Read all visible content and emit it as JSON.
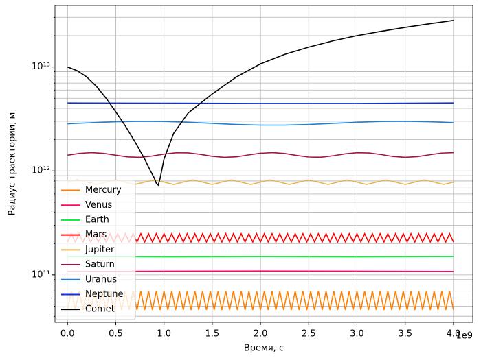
{
  "chart_data": {
    "type": "line",
    "xlabel": "Время, с",
    "ylabel": "Радиус траектории, м",
    "x_offset_label": "1e9",
    "xlim": [
      -130000000.0,
      4200000000.0
    ],
    "ylim": [
      35000000000.0,
      39000000000000.0
    ],
    "yscale": "log",
    "grid": true,
    "legend": "lower left",
    "xticks": [
      {
        "value": 0,
        "label": "0.0"
      },
      {
        "value": 500000000.0,
        "label": "0.5"
      },
      {
        "value": 1000000000.0,
        "label": "1.0"
      },
      {
        "value": 1500000000.0,
        "label": "1.5"
      },
      {
        "value": 2000000000.0,
        "label": "2.0"
      },
      {
        "value": 2500000000.0,
        "label": "2.5"
      },
      {
        "value": 3000000000.0,
        "label": "3.0"
      },
      {
        "value": 3500000000.0,
        "label": "3.5"
      },
      {
        "value": 4000000000.0,
        "label": "4.0"
      }
    ],
    "yticks": [
      {
        "value": 100000000000.0,
        "label": "10¹¹"
      },
      {
        "value": 1000000000000.0,
        "label": "10¹²"
      },
      {
        "value": 10000000000000.0,
        "label": "10¹³"
      }
    ],
    "yminor_ticks": [
      40000000000.0,
      50000000000.0,
      60000000000.0,
      70000000000.0,
      80000000000.0,
      90000000000.0,
      200000000000.0,
      300000000000.0,
      400000000000.0,
      500000000000.0,
      600000000000.0,
      700000000000.0,
      800000000000.0,
      900000000000.0,
      2000000000000.0,
      3000000000000.0,
      4000000000000.0,
      5000000000000.0,
      6000000000000.0,
      7000000000000.0,
      8000000000000.0,
      9000000000000.0,
      20000000000000.0,
      30000000000000.0
    ],
    "series": [
      {
        "name": "Mercury",
        "color": "#ff8000",
        "x": [
          0,
          40000000.0,
          80000000.0,
          120000000.0,
          160000000.0,
          200000000.0,
          240000000.0,
          280000000.0,
          320000000.0,
          360000000.0,
          400000000.0,
          440000000.0,
          480000000.0,
          520000000.0,
          560000000.0,
          600000000.0,
          640000000.0,
          680000000.0,
          720000000.0,
          760000000.0,
          800000000.0,
          840000000.0,
          880000000.0,
          920000000.0,
          960000000.0,
          1000000000.0,
          1040000000.0,
          1080000000.0,
          1120000000.0,
          1160000000.0,
          1200000000.0,
          1240000000.0,
          1280000000.0,
          1320000000.0,
          1360000000.0,
          1400000000.0,
          1440000000.0,
          1480000000.0,
          1520000000.0,
          1560000000.0,
          1600000000.0,
          1640000000.0,
          1680000000.0,
          1720000000.0,
          1760000000.0,
          1800000000.0,
          1840000000.0,
          1880000000.0,
          1920000000.0,
          1960000000.0,
          2000000000.0,
          2040000000.0,
          2080000000.0,
          2120000000.0,
          2160000000.0,
          2200000000.0,
          2240000000.0,
          2280000000.0,
          2320000000.0,
          2360000000.0,
          2400000000.0,
          2440000000.0,
          2480000000.0,
          2520000000.0,
          2560000000.0,
          2600000000.0,
          2640000000.0,
          2680000000.0,
          2720000000.0,
          2760000000.0,
          2800000000.0,
          2840000000.0,
          2880000000.0,
          2920000000.0,
          2960000000.0,
          3000000000.0,
          3040000000.0,
          3080000000.0,
          3120000000.0,
          3160000000.0,
          3200000000.0,
          3240000000.0,
          3280000000.0,
          3320000000.0,
          3360000000.0,
          3400000000.0,
          3440000000.0,
          3480000000.0,
          3520000000.0,
          3560000000.0,
          3600000000.0,
          3640000000.0,
          3680000000.0,
          3720000000.0,
          3760000000.0,
          3800000000.0,
          3840000000.0,
          3880000000.0,
          3920000000.0,
          3960000000.0,
          4000000000.0
        ],
        "values": [
          46000000000.0,
          69800000000.0,
          46000000000.0,
          69800000000.0,
          46000000000.0,
          69800000000.0,
          46000000000.0,
          69800000000.0,
          46000000000.0,
          69800000000.0,
          46000000000.0,
          69800000000.0,
          46000000000.0,
          69800000000.0,
          46000000000.0,
          69800000000.0,
          46000000000.0,
          69800000000.0,
          46000000000.0,
          69800000000.0,
          46000000000.0,
          69800000000.0,
          46000000000.0,
          69800000000.0,
          46000000000.0,
          69800000000.0,
          46000000000.0,
          69800000000.0,
          46000000000.0,
          69800000000.0,
          46000000000.0,
          69800000000.0,
          46000000000.0,
          69800000000.0,
          46000000000.0,
          69800000000.0,
          46000000000.0,
          69800000000.0,
          46000000000.0,
          69800000000.0,
          46000000000.0,
          69800000000.0,
          46000000000.0,
          69800000000.0,
          46000000000.0,
          69800000000.0,
          46000000000.0,
          69800000000.0,
          46000000000.0,
          69800000000.0,
          46000000000.0,
          69800000000.0,
          46000000000.0,
          69800000000.0,
          46000000000.0,
          69800000000.0,
          46000000000.0,
          69800000000.0,
          46000000000.0,
          69800000000.0,
          46000000000.0,
          69800000000.0,
          46000000000.0,
          69800000000.0,
          46000000000.0,
          69800000000.0,
          46000000000.0,
          69800000000.0,
          46000000000.0,
          69800000000.0,
          46000000000.0,
          69800000000.0,
          46000000000.0,
          69800000000.0,
          46000000000.0,
          69800000000.0,
          46000000000.0,
          69800000000.0,
          46000000000.0,
          69800000000.0,
          46000000000.0,
          69800000000.0,
          46000000000.0,
          69800000000.0,
          46000000000.0,
          69800000000.0,
          46000000000.0,
          69800000000.0,
          46000000000.0,
          69800000000.0,
          46000000000.0,
          69800000000.0,
          46000000000.0,
          69800000000.0,
          46000000000.0,
          69800000000.0,
          46000000000.0,
          69800000000.0,
          46000000000.0,
          69800000000.0,
          46000000000.0
        ]
      },
      {
        "name": "Venus",
        "color": "#ff0a6c",
        "x": [
          0,
          2000000000.0,
          4000000000.0
        ],
        "values": [
          108000000000.0,
          109000000000.0,
          108000000000.0
        ]
      },
      {
        "name": "Earth",
        "color": "#10f040",
        "x": [
          0,
          1000000000.0,
          2000000000.0,
          3000000000.0,
          4000000000.0
        ],
        "values": [
          150000000000.0,
          149000000000.0,
          150000000000.0,
          149000000000.0,
          150000000000.0
        ]
      },
      {
        "name": "Mars",
        "color": "#ff0000",
        "x": [
          0,
          40000000.0,
          80000000.0,
          120000000.0,
          160000000.0,
          200000000.0,
          240000000.0,
          280000000.0,
          320000000.0,
          360000000.0,
          400000000.0,
          440000000.0,
          480000000.0,
          520000000.0,
          560000000.0,
          600000000.0,
          640000000.0,
          680000000.0,
          720000000.0,
          760000000.0,
          800000000.0,
          840000000.0,
          880000000.0,
          920000000.0,
          960000000.0,
          1000000000.0,
          1040000000.0,
          1080000000.0,
          1120000000.0,
          1160000000.0,
          1200000000.0,
          1240000000.0,
          1280000000.0,
          1320000000.0,
          1360000000.0,
          1400000000.0,
          1440000000.0,
          1480000000.0,
          1520000000.0,
          1560000000.0,
          1600000000.0,
          1640000000.0,
          1680000000.0,
          1720000000.0,
          1760000000.0,
          1800000000.0,
          1840000000.0,
          1880000000.0,
          1920000000.0,
          1960000000.0,
          2000000000.0,
          2040000000.0,
          2080000000.0,
          2120000000.0,
          2160000000.0,
          2200000000.0,
          2240000000.0,
          2280000000.0,
          2320000000.0,
          2360000000.0,
          2400000000.0,
          2440000000.0,
          2480000000.0,
          2520000000.0,
          2560000000.0,
          2600000000.0,
          2640000000.0,
          2680000000.0,
          2720000000.0,
          2760000000.0,
          2800000000.0,
          2840000000.0,
          2880000000.0,
          2920000000.0,
          2960000000.0,
          3000000000.0,
          3040000000.0,
          3080000000.0,
          3120000000.0,
          3160000000.0,
          3200000000.0,
          3240000000.0,
          3280000000.0,
          3320000000.0,
          3360000000.0,
          3400000000.0,
          3440000000.0,
          3480000000.0,
          3520000000.0,
          3560000000.0,
          3600000000.0,
          3640000000.0,
          3680000000.0,
          3720000000.0,
          3760000000.0,
          3800000000.0,
          3840000000.0,
          3880000000.0,
          3920000000.0,
          3960000000.0,
          4000000000.0
        ],
        "values": [
          207000000000.0,
          249000000000.0,
          207000000000.0,
          249000000000.0,
          207000000000.0,
          249000000000.0,
          207000000000.0,
          249000000000.0,
          207000000000.0,
          249000000000.0,
          207000000000.0,
          249000000000.0,
          207000000000.0,
          249000000000.0,
          207000000000.0,
          249000000000.0,
          207000000000.0,
          249000000000.0,
          207000000000.0,
          249000000000.0,
          207000000000.0,
          249000000000.0,
          207000000000.0,
          249000000000.0,
          207000000000.0,
          249000000000.0,
          207000000000.0,
          249000000000.0,
          207000000000.0,
          249000000000.0,
          207000000000.0,
          249000000000.0,
          207000000000.0,
          249000000000.0,
          207000000000.0,
          249000000000.0,
          207000000000.0,
          249000000000.0,
          207000000000.0,
          249000000000.0,
          207000000000.0,
          249000000000.0,
          207000000000.0,
          249000000000.0,
          207000000000.0,
          249000000000.0,
          207000000000.0,
          249000000000.0,
          207000000000.0,
          249000000000.0,
          207000000000.0,
          249000000000.0,
          207000000000.0,
          249000000000.0,
          207000000000.0,
          249000000000.0,
          207000000000.0,
          249000000000.0,
          207000000000.0,
          249000000000.0,
          207000000000.0,
          249000000000.0,
          207000000000.0,
          249000000000.0,
          207000000000.0,
          249000000000.0,
          207000000000.0,
          249000000000.0,
          207000000000.0,
          249000000000.0,
          207000000000.0,
          249000000000.0,
          207000000000.0,
          249000000000.0,
          207000000000.0,
          249000000000.0,
          207000000000.0,
          249000000000.0,
          207000000000.0,
          249000000000.0,
          207000000000.0,
          249000000000.0,
          207000000000.0,
          249000000000.0,
          207000000000.0,
          249000000000.0,
          207000000000.0,
          249000000000.0,
          207000000000.0,
          249000000000.0,
          207000000000.0,
          249000000000.0,
          207000000000.0,
          249000000000.0,
          207000000000.0,
          249000000000.0,
          207000000000.0,
          249000000000.0,
          207000000000.0,
          249000000000.0,
          207000000000.0
        ]
      },
      {
        "name": "Jupiter",
        "color": "#e6b450",
        "x": [
          0,
          100000000.0,
          200000000.0,
          300000000.0,
          400000000.0,
          500000000.0,
          600000000.0,
          700000000.0,
          800000000.0,
          900000000.0,
          1000000000.0,
          1100000000.0,
          1200000000.0,
          1300000000.0,
          1400000000.0,
          1500000000.0,
          1600000000.0,
          1700000000.0,
          1800000000.0,
          1900000000.0,
          2000000000.0,
          2100000000.0,
          2200000000.0,
          2300000000.0,
          2400000000.0,
          2500000000.0,
          2600000000.0,
          2700000000.0,
          2800000000.0,
          2900000000.0,
          3000000000.0,
          3100000000.0,
          3200000000.0,
          3300000000.0,
          3400000000.0,
          3500000000.0,
          3600000000.0,
          3700000000.0,
          3800000000.0,
          3900000000.0,
          4000000000.0
        ],
        "values": [
          780000000000.0,
          820000000000.0,
          780000000000.0,
          740000000000.0,
          780000000000.0,
          820000000000.0,
          780000000000.0,
          740000000000.0,
          780000000000.0,
          820000000000.0,
          780000000000.0,
          740000000000.0,
          780000000000.0,
          820000000000.0,
          780000000000.0,
          740000000000.0,
          780000000000.0,
          820000000000.0,
          780000000000.0,
          740000000000.0,
          780000000000.0,
          820000000000.0,
          780000000000.0,
          740000000000.0,
          780000000000.0,
          820000000000.0,
          780000000000.0,
          740000000000.0,
          780000000000.0,
          820000000000.0,
          780000000000.0,
          740000000000.0,
          780000000000.0,
          820000000000.0,
          780000000000.0,
          740000000000.0,
          780000000000.0,
          820000000000.0,
          780000000000.0,
          740000000000.0,
          780000000000.0
        ]
      },
      {
        "name": "Saturn",
        "color": "#a0144a",
        "x": [
          0,
          125000000.0,
          250000000.0,
          375000000.0,
          500000000.0,
          625000000.0,
          750000000.0,
          875000000.0,
          1000000000.0,
          1125000000.0,
          1250000000.0,
          1375000000.0,
          1500000000.0,
          1625000000.0,
          1750000000.0,
          1875000000.0,
          2000000000.0,
          2125000000.0,
          2250000000.0,
          2375000000.0,
          2500000000.0,
          2625000000.0,
          2750000000.0,
          2875000000.0,
          3000000000.0,
          3125000000.0,
          3250000000.0,
          3375000000.0,
          3500000000.0,
          3625000000.0,
          3750000000.0,
          3875000000.0,
          4000000000.0
        ],
        "values": [
          1416000000000.0,
          1475000000000.0,
          1500000000000.0,
          1475000000000.0,
          1416000000000.0,
          1363000000000.0,
          1352000000000.0,
          1390000000000.0,
          1451000000000.0,
          1495000000000.0,
          1492000000000.0,
          1444000000000.0,
          1382000000000.0,
          1351000000000.0,
          1367000000000.0,
          1423000000000.0,
          1479000000000.0,
          1500000000000.0,
          1471000000000.0,
          1409000000000.0,
          1360000000000.0,
          1354000000000.0,
          1397000000000.0,
          1458000000000.0,
          1497000000000.0,
          1488000000000.0,
          1437000000000.0,
          1376000000000.0,
          1350000000000.0,
          1372000000000.0,
          1429000000000.0,
          1484000000000.0,
          1499000000000.0
        ]
      },
      {
        "name": "Uranus",
        "color": "#1f80d8",
        "x": [
          0,
          250000000.0,
          500000000.0,
          750000000.0,
          1000000000.0,
          1250000000.0,
          1500000000.0,
          1750000000.0,
          2000000000.0,
          2250000000.0,
          2500000000.0,
          2750000000.0,
          3000000000.0,
          3250000000.0,
          3500000000.0,
          3750000000.0,
          4000000000.0
        ],
        "values": [
          2835000000000.0,
          2908000000000.0,
          2970000000000.0,
          2999000000000.0,
          2986000000000.0,
          2936000000000.0,
          2864000000000.0,
          2796000000000.0,
          2755000000000.0,
          2755000000000.0,
          2796000000000.0,
          2864000000000.0,
          2935000000000.0,
          2986000000000.0,
          2999000000000.0,
          2970000000000.0,
          2909000000000.0
        ]
      },
      {
        "name": "Neptune",
        "color": "#1030e0",
        "x": [
          0,
          1000000000.0,
          2000000000.0,
          3000000000.0,
          4000000000.0
        ],
        "values": [
          4500000000000.0,
          4480000000000.0,
          4450000000000.0,
          4450000000000.0,
          4500000000000.0
        ]
      },
      {
        "name": "Comet",
        "color": "#000000",
        "x": [
          0,
          100000000.0,
          200000000.0,
          300000000.0,
          400000000.0,
          500000000.0,
          600000000.0,
          700000000.0,
          800000000.0,
          860000000.0,
          900000000.0,
          920000000.0,
          940000000.0,
          960000000.0,
          1000000000.0,
          1100000000.0,
          1250000000.0,
          1500000000.0,
          1750000000.0,
          2000000000.0,
          2250000000.0,
          2500000000.0,
          2750000000.0,
          3000000000.0,
          3250000000.0,
          3500000000.0,
          3750000000.0,
          4000000000.0
        ],
        "values": [
          10000000000000.0,
          9200000000000.0,
          8000000000000.0,
          6500000000000.0,
          5000000000000.0,
          3700000000000.0,
          2700000000000.0,
          1900000000000.0,
          1300000000000.0,
          1000000000000.0,
          850000000000.0,
          760000000000.0,
          730000000000.0,
          850000000000.0,
          1300000000000.0,
          2300000000000.0,
          3600000000000.0,
          5500000000000.0,
          8000000000000.0,
          10700000000000.0,
          13200000000000.0,
          15500000000000.0,
          17800000000000.0,
          20000000000000.0,
          22000000000000.0,
          24000000000000.0,
          26000000000000.0,
          28000000000000.0
        ]
      }
    ]
  }
}
